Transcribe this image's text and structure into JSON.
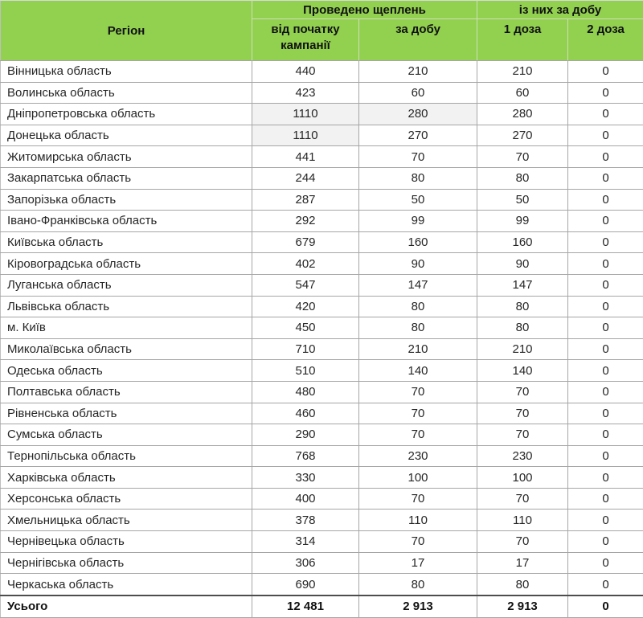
{
  "table": {
    "title_semantic": "vaccination-by-region-report",
    "header": {
      "region": "Регіон",
      "group_performed": "Проведено щеплень",
      "group_per_day": "із них за добу",
      "col_campaign": "від початку кампанії",
      "col_day": "за добу",
      "col_dose1": "1 доза",
      "col_dose2": "2 доза"
    },
    "rows": [
      {
        "region": "Вінницька область",
        "campaign": "440",
        "day": "210",
        "dose1": "210",
        "dose2": "0",
        "shade": []
      },
      {
        "region": "Волинська область",
        "campaign": "423",
        "day": "60",
        "dose1": "60",
        "dose2": "0",
        "shade": []
      },
      {
        "region": "Дніпропетровська область",
        "campaign": "1110",
        "day": "280",
        "dose1": "280",
        "dose2": "0",
        "shade": [
          "campaign",
          "day"
        ]
      },
      {
        "region": "Донецька область",
        "campaign": "1110",
        "day": "270",
        "dose1": "270",
        "dose2": "0",
        "shade": [
          "campaign"
        ]
      },
      {
        "region": "Житомирська область",
        "campaign": "441",
        "day": "70",
        "dose1": "70",
        "dose2": "0",
        "shade": []
      },
      {
        "region": "Закарпатська область",
        "campaign": "244",
        "day": "80",
        "dose1": "80",
        "dose2": "0",
        "shade": []
      },
      {
        "region": "Запорізька область",
        "campaign": "287",
        "day": "50",
        "dose1": "50",
        "dose2": "0",
        "shade": []
      },
      {
        "region": "Івано-Франківська область",
        "campaign": "292",
        "day": "99",
        "dose1": "99",
        "dose2": "0",
        "shade": []
      },
      {
        "region": "Київська область",
        "campaign": "679",
        "day": "160",
        "dose1": "160",
        "dose2": "0",
        "shade": []
      },
      {
        "region": "Кіровоградська область",
        "campaign": "402",
        "day": "90",
        "dose1": "90",
        "dose2": "0",
        "shade": []
      },
      {
        "region": "Луганська область",
        "campaign": "547",
        "day": "147",
        "dose1": "147",
        "dose2": "0",
        "shade": []
      },
      {
        "region": "Львівська область",
        "campaign": "420",
        "day": "80",
        "dose1": "80",
        "dose2": "0",
        "shade": []
      },
      {
        "region": "м. Київ",
        "campaign": "450",
        "day": "80",
        "dose1": "80",
        "dose2": "0",
        "shade": []
      },
      {
        "region": "Миколаївська область",
        "campaign": "710",
        "day": "210",
        "dose1": "210",
        "dose2": "0",
        "shade": []
      },
      {
        "region": "Одеська область",
        "campaign": "510",
        "day": "140",
        "dose1": "140",
        "dose2": "0",
        "shade": []
      },
      {
        "region": "Полтавська область",
        "campaign": "480",
        "day": "70",
        "dose1": "70",
        "dose2": "0",
        "shade": []
      },
      {
        "region": "Рівненська область",
        "campaign": "460",
        "day": "70",
        "dose1": "70",
        "dose2": "0",
        "shade": []
      },
      {
        "region": "Сумська область",
        "campaign": "290",
        "day": "70",
        "dose1": "70",
        "dose2": "0",
        "shade": []
      },
      {
        "region": "Тернопільська область",
        "campaign": "768",
        "day": "230",
        "dose1": "230",
        "dose2": "0",
        "shade": []
      },
      {
        "region": "Харківська область",
        "campaign": "330",
        "day": "100",
        "dose1": "100",
        "dose2": "0",
        "shade": []
      },
      {
        "region": "Херсонська область",
        "campaign": "400",
        "day": "70",
        "dose1": "70",
        "dose2": "0",
        "shade": []
      },
      {
        "region": "Хмельницька область",
        "campaign": "378",
        "day": "110",
        "dose1": "110",
        "dose2": "0",
        "shade": []
      },
      {
        "region": "Чернівецька область",
        "campaign": "314",
        "day": "70",
        "dose1": "70",
        "dose2": "0",
        "shade": []
      },
      {
        "region": "Чернігівська область",
        "campaign": "306",
        "day": "17",
        "dose1": "17",
        "dose2": "0",
        "shade": []
      },
      {
        "region": "Черкаська область",
        "campaign": "690",
        "day": "80",
        "dose1": "80",
        "dose2": "0",
        "shade": []
      }
    ],
    "total": {
      "label": "Усього",
      "campaign": "12 481",
      "day": "2 913",
      "dose1": "2 913",
      "dose2": "0"
    },
    "colors": {
      "header_green": "#92D050",
      "shaded_cell": "#F2F2F2",
      "grid_border": "#A6A6A6",
      "total_top_border": "#4D4D4D",
      "text": "#262626"
    }
  }
}
